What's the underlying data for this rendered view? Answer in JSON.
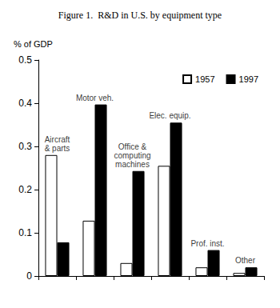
{
  "chart_data": {
    "type": "bar",
    "title": "Figure 1.  R&D in U.S. by equipment type",
    "ylabel": "% of GDP",
    "categories": [
      "Aircraft\n& parts",
      "Motor veh.",
      "Office &\ncomputing\nmachines",
      "Elec. equip.",
      "Prof. inst.",
      "Other"
    ],
    "series": [
      {
        "name": "1957",
        "color": "#ffffff",
        "values": [
          0.28,
          0.128,
          0.03,
          0.255,
          0.02,
          0.007
        ]
      },
      {
        "name": "1997",
        "color": "#000000",
        "values": [
          0.078,
          0.397,
          0.243,
          0.355,
          0.06,
          0.02
        ]
      }
    ],
    "ylim": [
      0,
      0.5
    ],
    "yticks": [
      0,
      0.1,
      0.2,
      0.3,
      0.4,
      0.5
    ],
    "grid": false,
    "legend": "upper right",
    "tick_labels": "y"
  }
}
